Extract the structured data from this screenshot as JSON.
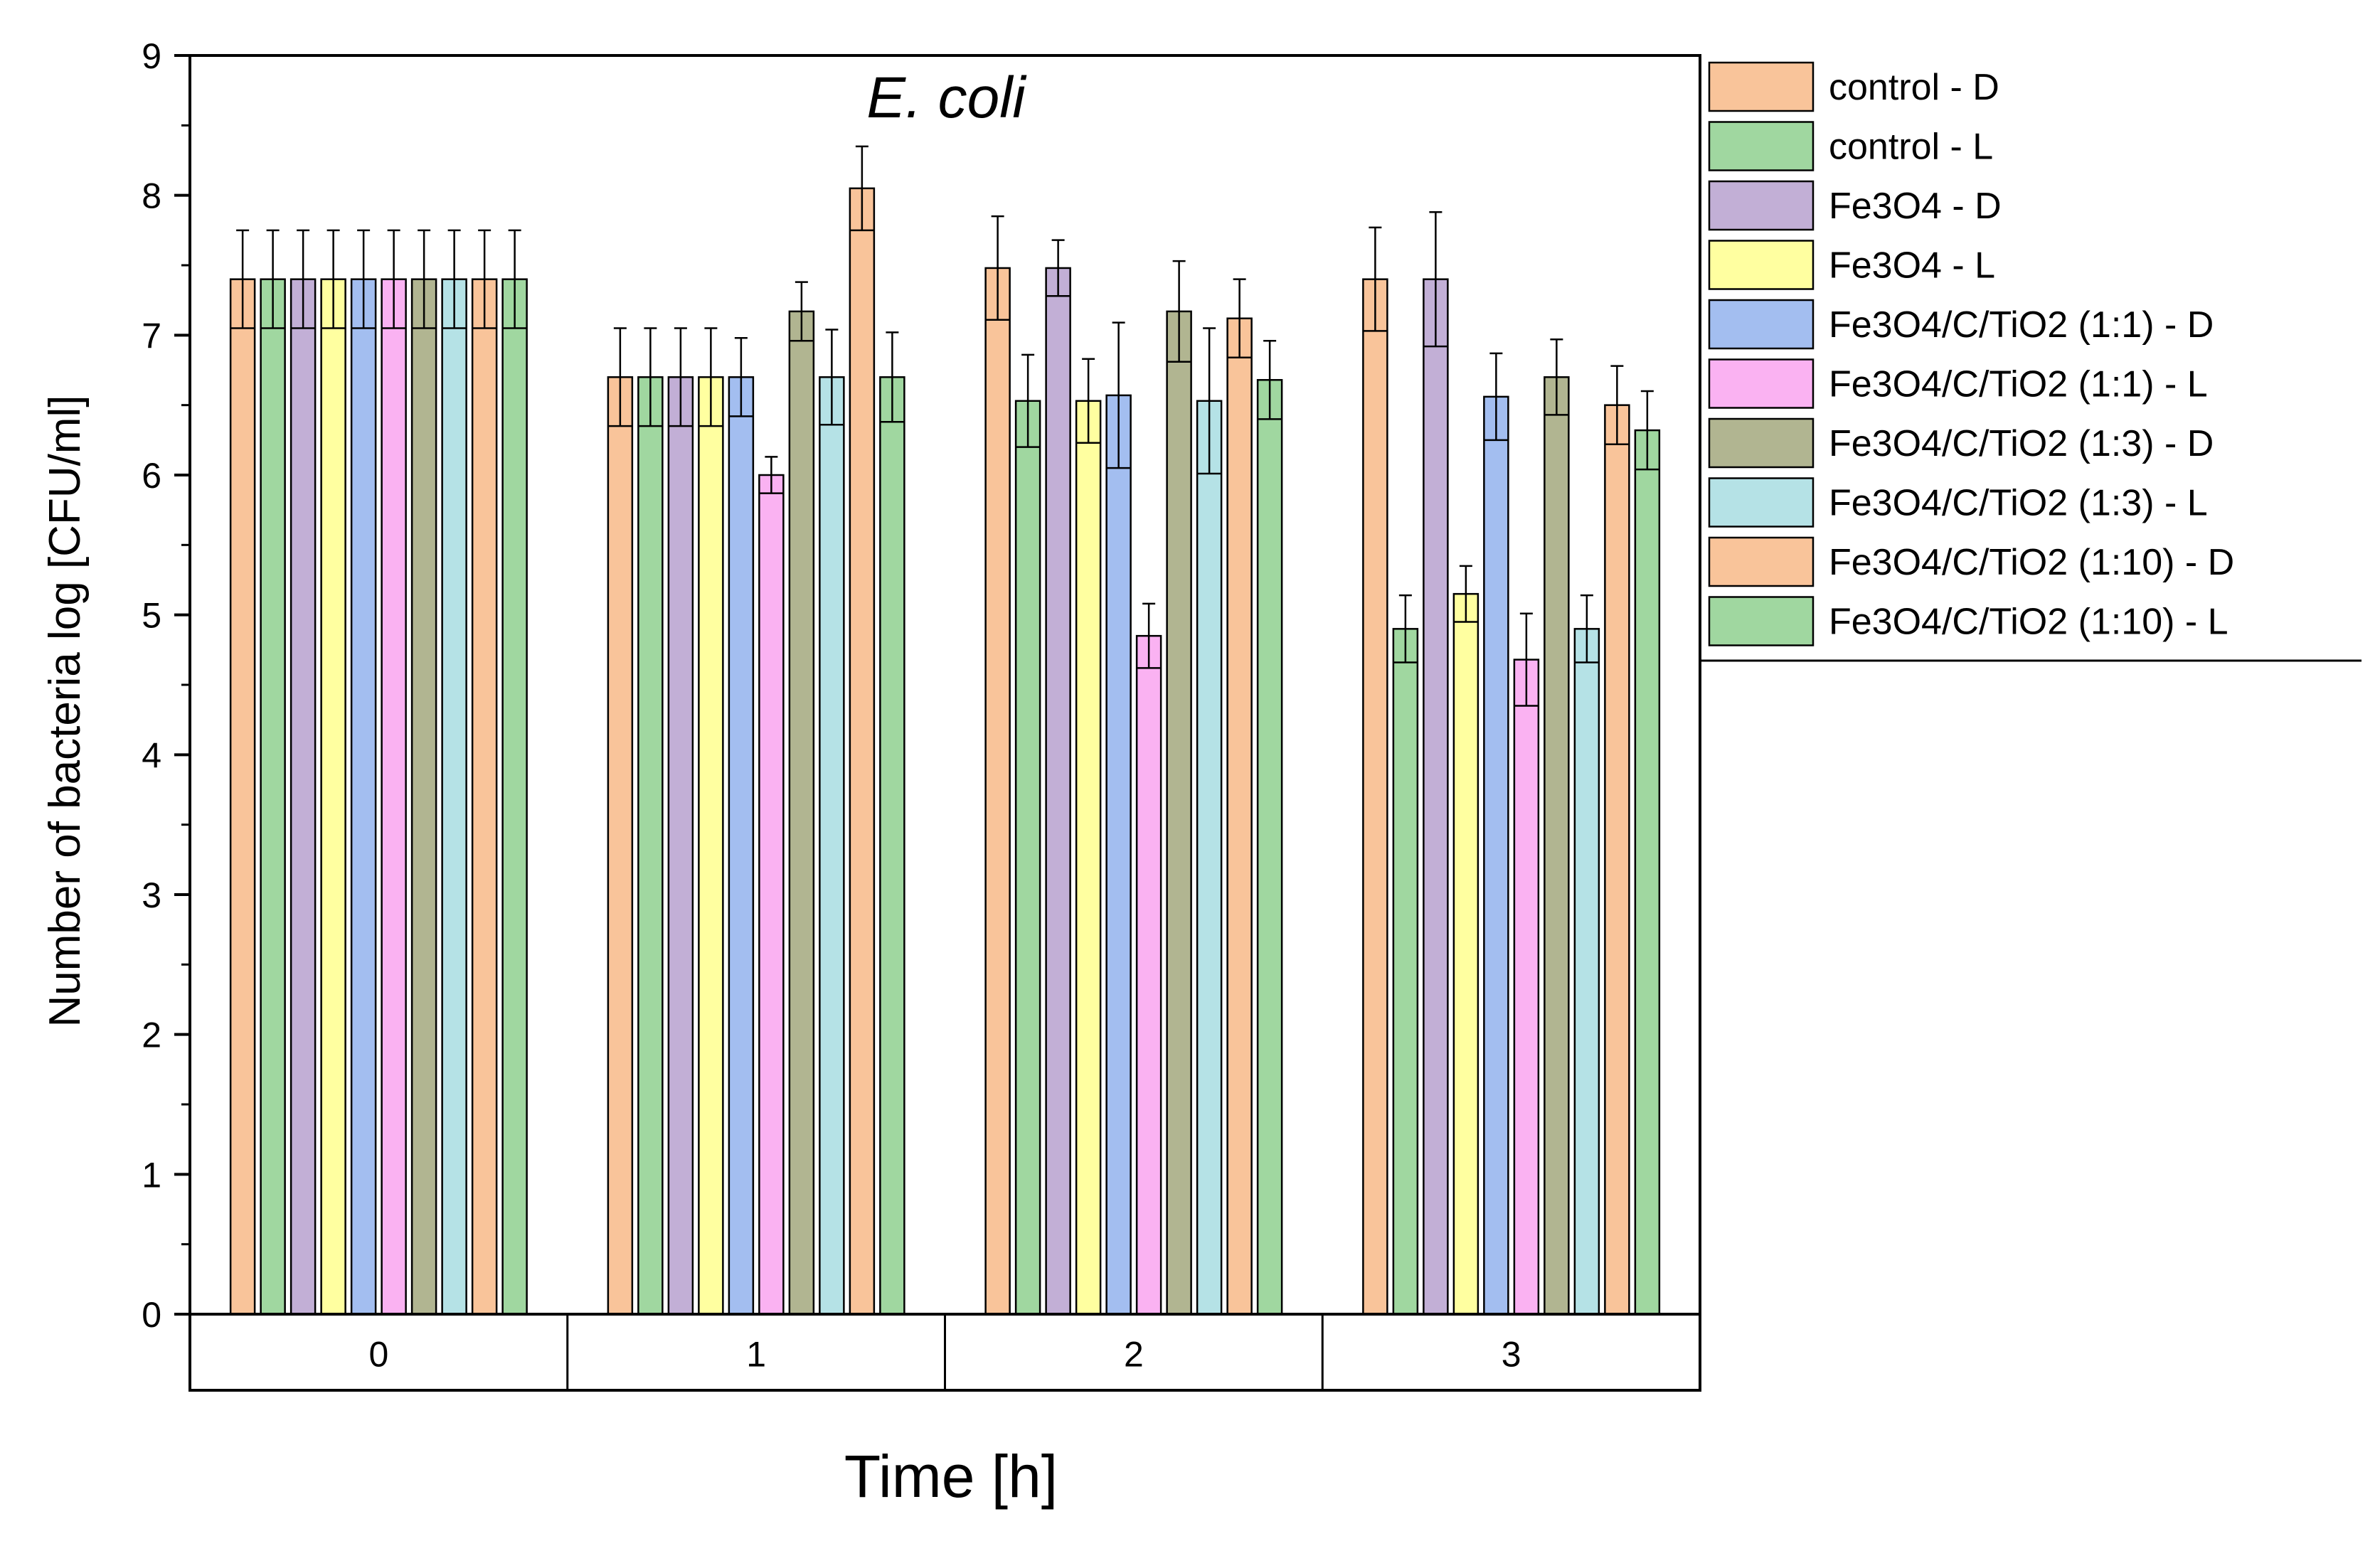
{
  "chart_data": {
    "type": "bar",
    "title": "E. coli",
    "xlabel": "Time [h]",
    "ylabel": "Number of bacteria log [CFU/ml]",
    "ylim": [
      0,
      9
    ],
    "yticks": [
      0,
      1,
      2,
      3,
      4,
      5,
      6,
      7,
      8,
      9
    ],
    "categories": [
      "0",
      "1",
      "2",
      "3"
    ],
    "grid": false,
    "legend_position": "outside-right",
    "series": [
      {
        "name": "control - D",
        "color": "#F9C49A",
        "values": [
          7.4,
          6.7,
          7.48,
          7.4
        ],
        "errors": [
          0.35,
          0.35,
          0.37,
          0.37
        ]
      },
      {
        "name": "control - L",
        "color": "#A0D7A0",
        "values": [
          7.4,
          6.7,
          6.53,
          4.9
        ],
        "errors": [
          0.35,
          0.35,
          0.33,
          0.24
        ]
      },
      {
        "name": "Fe3O4 - D",
        "color": "#C2AFD6",
        "values": [
          7.4,
          6.7,
          7.48,
          7.4
        ],
        "errors": [
          0.35,
          0.35,
          0.2,
          0.48
        ]
      },
      {
        "name": "Fe3O4 - L",
        "color": "#FFFFA0",
        "values": [
          7.4,
          6.7,
          6.53,
          5.15
        ],
        "errors": [
          0.35,
          0.35,
          0.3,
          0.2
        ]
      },
      {
        "name": "Fe3O4/C/TiO2 (1:1) - D",
        "color": "#A3BEF0",
        "values": [
          7.4,
          6.7,
          6.57,
          6.56
        ],
        "errors": [
          0.35,
          0.28,
          0.52,
          0.31
        ]
      },
      {
        "name": "Fe3O4/C/TiO2 (1:1) - L",
        "color": "#FAB2F2",
        "values": [
          7.4,
          6.0,
          4.85,
          4.68
        ],
        "errors": [
          0.35,
          0.13,
          0.23,
          0.33
        ]
      },
      {
        "name": "Fe3O4/C/TiO2 (1:3) - D",
        "color": "#B1B591",
        "values": [
          7.4,
          7.17,
          7.17,
          6.7
        ],
        "errors": [
          0.35,
          0.21,
          0.36,
          0.27
        ]
      },
      {
        "name": "Fe3O4/C/TiO2 (1:3) - L",
        "color": "#B5E2E6",
        "values": [
          7.4,
          6.7,
          6.53,
          4.9
        ],
        "errors": [
          0.35,
          0.34,
          0.52,
          0.24
        ]
      },
      {
        "name": "Fe3O4/C/TiO2 (1:10) - D",
        "color": "#F9C49A",
        "values": [
          7.4,
          8.05,
          7.12,
          6.5
        ],
        "errors": [
          0.35,
          0.3,
          0.28,
          0.28
        ]
      },
      {
        "name": "Fe3O4/C/TiO2 (1:10) - L",
        "color": "#A0D7A0",
        "values": [
          7.4,
          6.7,
          6.68,
          6.32
        ],
        "errors": [
          0.35,
          0.32,
          0.28,
          0.28
        ]
      }
    ]
  }
}
